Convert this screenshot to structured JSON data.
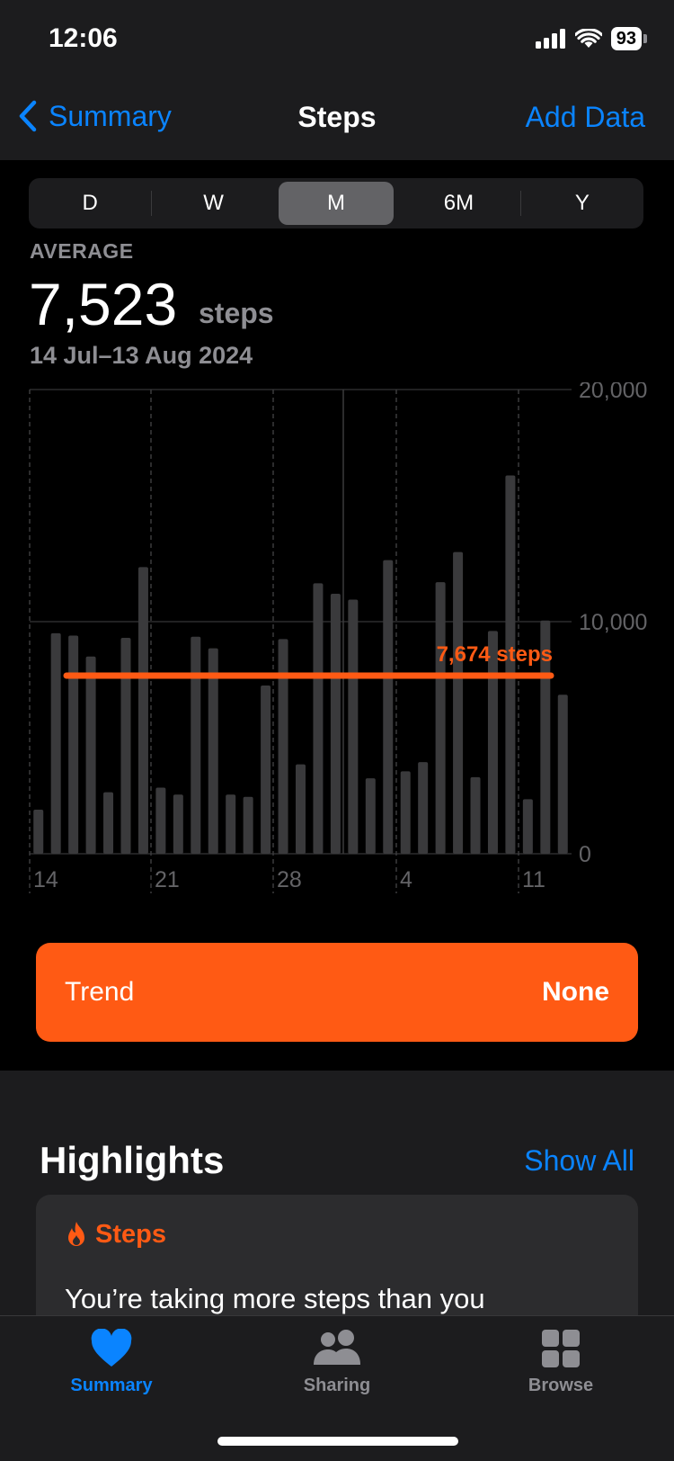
{
  "status": {
    "time": "12:06",
    "battery": "93"
  },
  "nav": {
    "back_label": "Summary",
    "title": "Steps",
    "action_label": "Add Data"
  },
  "segments": [
    "D",
    "W",
    "M",
    "6M",
    "Y"
  ],
  "selected_segment": "M",
  "summary": {
    "label": "AVERAGE",
    "value": "7,523",
    "unit": "steps",
    "range": "14 Jul–13 Aug 2024"
  },
  "chart_data": {
    "type": "bar",
    "categories": [
      "14 Jul",
      "15 Jul",
      "16 Jul",
      "17 Jul",
      "18 Jul",
      "19 Jul",
      "20 Jul",
      "21 Jul",
      "22 Jul",
      "23 Jul",
      "24 Jul",
      "25 Jul",
      "26 Jul",
      "27 Jul",
      "28 Jul",
      "29 Jul",
      "30 Jul",
      "31 Jul",
      "1 Aug",
      "2 Aug",
      "3 Aug",
      "4 Aug",
      "5 Aug",
      "6 Aug",
      "7 Aug",
      "8 Aug",
      "9 Aug",
      "10 Aug",
      "11 Aug",
      "12 Aug",
      "13 Aug"
    ],
    "values": [
      1900,
      9500,
      9400,
      8500,
      2650,
      9300,
      12350,
      2850,
      2550,
      9350,
      8850,
      2550,
      2450,
      7250,
      9250,
      3850,
      11650,
      11200,
      10950,
      3250,
      12650,
      3550,
      3950,
      11700,
      13000,
      3300,
      9600,
      16300,
      2350,
      10050,
      6850
    ],
    "x_tick_labels": [
      "14",
      "21",
      "28",
      "4",
      "11"
    ],
    "y_tick_labels": [
      "20,000",
      "10,000",
      "0"
    ],
    "ylim": [
      0,
      20000
    ],
    "reference_line": {
      "value": 7674,
      "label": "7,674 steps",
      "color": "#ff5a14"
    },
    "bar_color": "#3a3a3c",
    "grid": true
  },
  "trend": {
    "label": "Trend",
    "value": "None"
  },
  "highlights": {
    "title": "Highlights",
    "show_all": "Show All",
    "card": {
      "category": "Steps",
      "text": "You’re taking more steps than you"
    }
  },
  "tabs": [
    {
      "label": "Summary",
      "icon": "heart-icon",
      "active": true
    },
    {
      "label": "Sharing",
      "icon": "people-icon",
      "active": false
    },
    {
      "label": "Browse",
      "icon": "grid-icon",
      "active": false
    }
  ],
  "colors": {
    "accent": "#0a84ff",
    "steps_orange": "#ff5a14",
    "background": "#000000"
  }
}
